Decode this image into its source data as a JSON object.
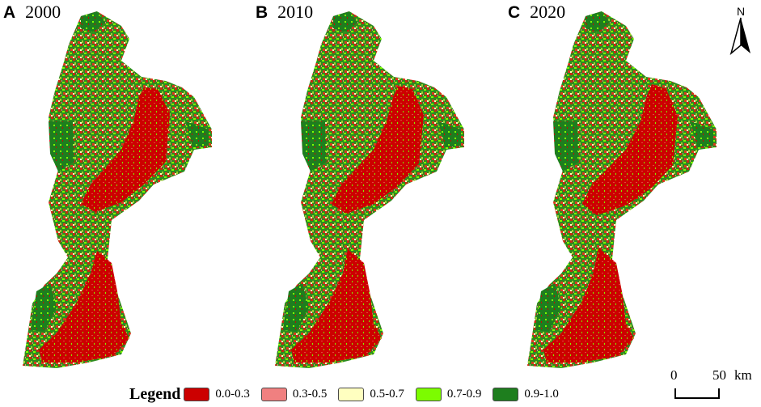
{
  "panels": [
    {
      "letter": "A",
      "year": "2000"
    },
    {
      "letter": "B",
      "year": "2010"
    },
    {
      "letter": "C",
      "year": "2020"
    }
  ],
  "north_arrow": {
    "label": "N"
  },
  "legend": {
    "title": "Legend",
    "items": [
      {
        "label": "0.0-0.3",
        "color": "#cc0000"
      },
      {
        "label": "0.3-0.5",
        "color": "#f08080"
      },
      {
        "label": "0.5-0.7",
        "color": "#ffffc0"
      },
      {
        "label": "0.7-0.9",
        "color": "#7cfc00"
      },
      {
        "label": "0.9-1.0",
        "color": "#1e7e1e"
      }
    ]
  },
  "scale_bar": {
    "start": "0",
    "end": "50",
    "unit": "km"
  }
}
